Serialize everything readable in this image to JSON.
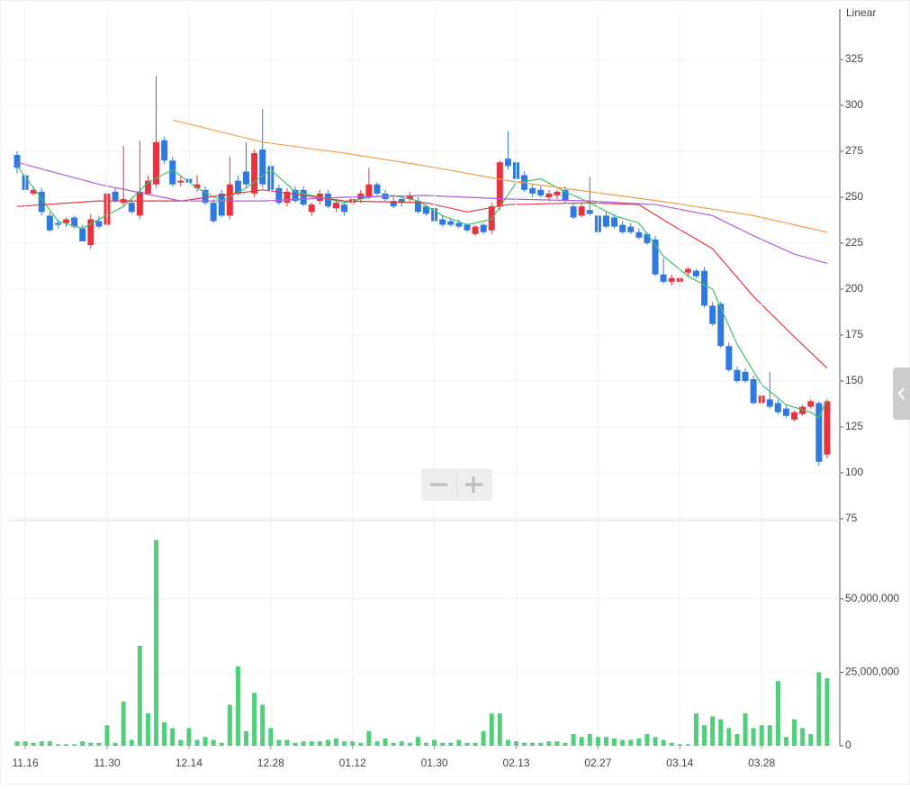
{
  "chart_data": [
    {
      "type": "candlestick",
      "scale_label": "Linear",
      "open": [
        273,
        262,
        252,
        253,
        240,
        236,
        236,
        239,
        233,
        224,
        237,
        235,
        253,
        247,
        247,
        240,
        252,
        257,
        281,
        270,
        258,
        260,
        255,
        254,
        247,
        252,
        240,
        259,
        264,
        252,
        276,
        267,
        255,
        247,
        254,
        254,
        242,
        248,
        252,
        244,
        246,
        247,
        249,
        250,
        257,
        252,
        248,
        249,
        249,
        248,
        245,
        244,
        238,
        237,
        236,
        235,
        230,
        235,
        232,
        245,
        271,
        269,
        262,
        255,
        254,
        250,
        251,
        254,
        245,
        240,
        243,
        240,
        240,
        239,
        235,
        234,
        231,
        230,
        227,
        208,
        204,
        204,
        209,
        210,
        210,
        191,
        192,
        169,
        156,
        155,
        151,
        138,
        140,
        138,
        135,
        129,
        132,
        136,
        138,
        110
      ],
      "high": [
        275,
        264,
        256,
        255,
        242,
        238,
        239,
        240,
        235,
        241,
        240,
        266,
        255,
        278,
        249,
        281,
        262,
        316,
        283,
        272,
        262,
        262,
        262,
        256,
        249,
        254,
        272,
        262,
        280,
        276,
        298,
        270,
        257,
        255,
        256,
        256,
        247,
        254,
        254,
        249,
        248,
        251,
        254,
        266,
        258,
        254,
        250,
        251,
        253,
        250,
        246,
        245,
        240,
        238,
        238,
        236,
        235,
        236,
        247,
        270,
        286,
        281,
        264,
        257,
        256,
        254,
        254,
        256,
        247,
        247,
        261,
        242,
        242,
        241,
        237,
        236,
        233,
        231,
        229,
        217,
        208,
        207,
        212,
        211,
        212,
        193,
        193,
        171,
        158,
        157,
        153,
        143,
        155,
        140,
        137,
        134,
        137,
        140,
        139,
        140
      ],
      "low": [
        263,
        252,
        251,
        240,
        231,
        233,
        234,
        233,
        226,
        222,
        233,
        234,
        247,
        245,
        241,
        238,
        251,
        255,
        268,
        256,
        256,
        257,
        253,
        246,
        236,
        239,
        238,
        251,
        255,
        250,
        255,
        253,
        246,
        245,
        247,
        245,
        240,
        246,
        244,
        242,
        240,
        245,
        247,
        249,
        251,
        248,
        244,
        245,
        247,
        241,
        240,
        236,
        234,
        234,
        233,
        231,
        229,
        230,
        230,
        243,
        265,
        258,
        253,
        250,
        250,
        248,
        249,
        247,
        238,
        239,
        240,
        230,
        233,
        233,
        230,
        230,
        227,
        224,
        207,
        203,
        202,
        201,
        207,
        206,
        190,
        180,
        168,
        155,
        149,
        149,
        137,
        136,
        135,
        132,
        130,
        128,
        131,
        135,
        104,
        108
      ],
      "close": [
        266,
        254,
        254,
        242,
        232,
        235,
        238,
        234,
        226,
        238,
        234,
        252,
        248,
        249,
        242,
        253,
        259,
        280,
        270,
        257,
        259,
        258,
        257,
        247,
        237,
        240,
        257,
        252,
        257,
        274,
        257,
        254,
        247,
        253,
        248,
        246,
        246,
        252,
        245,
        247,
        242,
        249,
        252,
        257,
        252,
        249,
        245,
        247,
        251,
        242,
        241,
        237,
        235,
        235,
        234,
        232,
        234,
        231,
        245,
        269,
        267,
        260,
        254,
        252,
        251,
        252,
        253,
        248,
        239,
        245,
        241,
        231,
        234,
        234,
        231,
        231,
        228,
        225,
        208,
        204,
        206,
        206,
        211,
        207,
        191,
        181,
        169,
        156,
        150,
        150,
        138,
        142,
        136,
        133,
        131,
        133,
        136,
        139,
        106,
        139
      ],
      "up_color": "#e8333f",
      "down_color": "#2f7ae0",
      "lines": [
        {
          "color": "#3cc26a",
          "x": [
            0,
            5,
            8,
            10,
            13,
            16,
            19,
            22,
            25,
            28,
            31,
            34,
            37,
            40,
            43,
            46,
            49,
            52,
            55,
            58,
            61,
            64,
            67,
            70,
            73,
            76,
            79,
            82,
            85,
            88,
            91,
            94,
            97,
            98,
            99
          ],
          "values": [
            267,
            237,
            233,
            238,
            245,
            258,
            265,
            255,
            248,
            255,
            265,
            253,
            250,
            247,
            250,
            251,
            248,
            240,
            235,
            238,
            258,
            260,
            253,
            247,
            240,
            236,
            218,
            207,
            200,
            170,
            148,
            137,
            133,
            130,
            140
          ]
        },
        {
          "color": "#e03a3a",
          "x": [
            0,
            10,
            20,
            30,
            40,
            50,
            55,
            60,
            70,
            76,
            80,
            85,
            90,
            95,
            99
          ],
          "values": [
            245,
            248,
            248,
            254,
            248,
            247,
            242,
            246,
            247,
            246,
            235,
            222,
            196,
            174,
            157
          ]
        },
        {
          "color": "#b15be0",
          "x": [
            0,
            10,
            20,
            30,
            40,
            50,
            60,
            70,
            78,
            85,
            90,
            95,
            99
          ],
          "values": [
            269,
            257,
            248,
            248,
            250,
            251,
            249,
            248,
            246,
            240,
            229,
            219,
            214
          ]
        },
        {
          "color": "#f0a040",
          "x": [
            19,
            30,
            40,
            50,
            60,
            70,
            80,
            90,
            99
          ],
          "values": [
            292,
            280,
            274,
            267,
            259,
            253,
            247,
            240,
            231
          ]
        }
      ],
      "ylim": [
        75,
        350
      ],
      "yticks": [
        75,
        100,
        125,
        150,
        175,
        200,
        225,
        250,
        275,
        300,
        325
      ],
      "grid": true
    },
    {
      "type": "bar",
      "color": "#4fcf7a",
      "categories": [
        null,
        "11.16",
        null,
        null,
        null,
        null,
        null,
        null,
        null,
        null,
        null,
        "11.30",
        null,
        null,
        null,
        null,
        null,
        null,
        null,
        null,
        null,
        "12.14",
        null,
        null,
        null,
        null,
        null,
        null,
        null,
        null,
        null,
        "12.28",
        null,
        null,
        null,
        null,
        null,
        null,
        null,
        null,
        null,
        "01.12",
        null,
        null,
        null,
        null,
        null,
        null,
        null,
        null,
        null,
        "01.30",
        null,
        null,
        null,
        null,
        null,
        null,
        null,
        null,
        null,
        "02.13",
        null,
        null,
        null,
        null,
        null,
        null,
        null,
        null,
        null,
        "02.27",
        null,
        null,
        null,
        null,
        null,
        null,
        null,
        null,
        null,
        "03.14",
        null,
        null,
        null,
        null,
        null,
        null,
        null,
        null,
        null,
        "03.28",
        null,
        null,
        null,
        null,
        null,
        null,
        null,
        null
      ],
      "values": [
        1500000,
        1500000,
        1000000,
        1500000,
        1500000,
        500000,
        500000,
        500000,
        1500000,
        1000000,
        1000000,
        7000000,
        1000000,
        15000000,
        2000000,
        34000000,
        11000000,
        70000000,
        8000000,
        6000000,
        2000000,
        6000000,
        2000000,
        3000000,
        2000000,
        1000000,
        14000000,
        27000000,
        5000000,
        18000000,
        14000000,
        6000000,
        2000000,
        2000000,
        1000000,
        1500000,
        1500000,
        1500000,
        2000000,
        2500000,
        1500000,
        1500000,
        1000000,
        5000000,
        1500000,
        2500000,
        1000000,
        1500000,
        1000000,
        3000000,
        1000000,
        2000000,
        1000000,
        1000000,
        2000000,
        1000000,
        1000000,
        5000000,
        11000000,
        11000000,
        2000000,
        1500000,
        1000000,
        1000000,
        1000000,
        1500000,
        1500000,
        1000000,
        4000000,
        3000000,
        4000000,
        3000000,
        3000000,
        2500000,
        2000000,
        2000000,
        2500000,
        4000000,
        3000000,
        2000000,
        1000000,
        500000,
        500000,
        11000000,
        7000000,
        10000000,
        9000000,
        6000000,
        4000000,
        11000000,
        6000000,
        7000000,
        7000000,
        22000000,
        3000000,
        9000000,
        6000000,
        4000000,
        25000000,
        23000000
      ],
      "ylim": [
        0,
        76000000
      ],
      "yticks": [
        0,
        {
          "value": 25000000,
          "label": "25,000,000"
        },
        {
          "value": 50000000,
          "label": "50,000,000"
        }
      ],
      "grid": true
    }
  ]
}
